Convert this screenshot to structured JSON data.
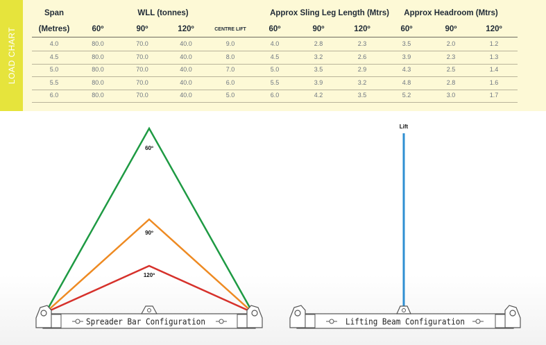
{
  "side_tab": "LOAD CHART",
  "table": {
    "group_headers": [
      "Span",
      "WLL (tonnes)",
      "Approx Sling Leg Length (Mtrs)",
      "Approx Headroom (Mtrs)"
    ],
    "column_headers": [
      "(Metres)",
      "60º",
      "90º",
      "120º",
      "CENTRE LIFT",
      "60º",
      "90º",
      "120º",
      "60º",
      "90º",
      "120º"
    ],
    "rows": [
      [
        "4.0",
        "80.0",
        "70.0",
        "40.0",
        "9.0",
        "4.0",
        "2.8",
        "2.3",
        "3.5",
        "2.0",
        "1.2"
      ],
      [
        "4.5",
        "80.0",
        "70.0",
        "40.0",
        "8.0",
        "4.5",
        "3.2",
        "2.6",
        "3.9",
        "2.3",
        "1.3"
      ],
      [
        "5.0",
        "80.0",
        "70.0",
        "40.0",
        "7.0",
        "5.0",
        "3.5",
        "2.9",
        "4.3",
        "2.5",
        "1.4"
      ],
      [
        "5.5",
        "80.0",
        "70.0",
        "40.0",
        "6.0",
        "5.5",
        "3.9",
        "3.2",
        "4.8",
        "2.8",
        "1.6"
      ],
      [
        "6.0",
        "80.0",
        "70.0",
        "40.0",
        "5.0",
        "6.0",
        "4.2",
        "3.5",
        "5.2",
        "3.0",
        "1.7"
      ]
    ]
  },
  "spreader": {
    "caption": "Spreader Bar Configuration",
    "angle_60": "60º",
    "angle_90": "90º",
    "angle_120": "120º",
    "color_60": "#1e9a43",
    "color_90": "#ee8a22",
    "color_120": "#d6312b"
  },
  "lifting": {
    "caption": "Lifting Beam Configuration",
    "lift_label": "Lift",
    "color": "#2f8fd2"
  }
}
